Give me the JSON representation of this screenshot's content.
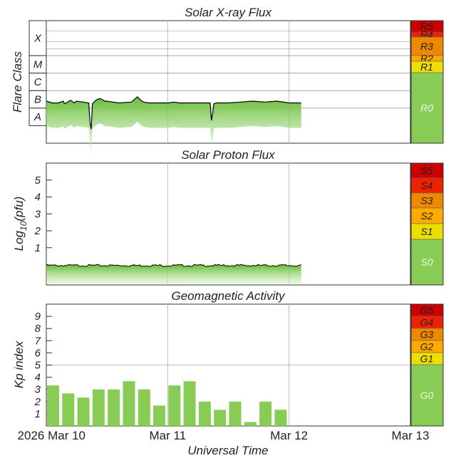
{
  "chart_data": [
    {
      "type": "line",
      "title": "Solar X-ray Flux",
      "ylabel": "Flare Class",
      "flare_classes": [
        "X",
        "M",
        "C",
        "B",
        "A"
      ],
      "scale": [
        {
          "label": "R5",
          "color": "#cc0000"
        },
        {
          "label": "R4",
          "color": "#ee2200"
        },
        {
          "label": "R3",
          "color": "#ee8800"
        },
        {
          "label": "R2",
          "color": "#ffaa00"
        },
        {
          "label": "R1",
          "color": "#eedd00"
        },
        {
          "label": "R0",
          "color": "#88cc55"
        }
      ],
      "ylim": [
        -9,
        -2
      ],
      "x_days": [
        0,
        0.25,
        0.5,
        0.75,
        1.0,
        1.25,
        1.5,
        1.75,
        2.0,
        2.1
      ],
      "series": [
        {
          "x": [
            0.0,
            0.05,
            0.1,
            0.14,
            0.15,
            0.2,
            0.23,
            0.25,
            0.3,
            0.35,
            0.36,
            0.37,
            0.38,
            0.4,
            0.42,
            0.44,
            0.46,
            0.48,
            0.5,
            0.55,
            0.6,
            0.7,
            0.75,
            0.78,
            0.8,
            0.85,
            0.9,
            1.0,
            1.05,
            1.1,
            1.2,
            1.3,
            1.35,
            1.36,
            1.37,
            1.38,
            1.4,
            1.5,
            1.6,
            1.7,
            1.8,
            1.9,
            2.0,
            2.1
          ],
          "y": [
            -6.6,
            -6.7,
            -6.7,
            -6.6,
            -6.75,
            -6.55,
            -6.7,
            -6.6,
            -6.65,
            -6.7,
            -7.8,
            -8.2,
            -6.75,
            -6.6,
            -6.5,
            -6.45,
            -6.5,
            -6.6,
            -6.6,
            -6.65,
            -6.7,
            -6.65,
            -6.35,
            -6.55,
            -6.65,
            -6.7,
            -6.7,
            -6.7,
            -6.65,
            -6.7,
            -6.7,
            -6.7,
            -6.7,
            -7.7,
            -7.3,
            -6.75,
            -6.7,
            -6.7,
            -6.65,
            -6.6,
            -6.65,
            -6.6,
            -6.7,
            -6.7
          ]
        }
      ]
    },
    {
      "type": "line",
      "title": "Solar Proton Flux",
      "ylabel": "Log10(pfu)",
      "ylabel_base": "Log",
      "ylabel_sub": "10",
      "ylabel_rest": "(pfu)",
      "y_ticks": [
        "1",
        "2",
        "3",
        "4",
        "5"
      ],
      "scale": [
        {
          "label": "S5",
          "color": "#cc0000"
        },
        {
          "label": "S4",
          "color": "#ee2200"
        },
        {
          "label": "S3",
          "color": "#ee8800"
        },
        {
          "label": "S2",
          "color": "#ffaa00"
        },
        {
          "label": "S1",
          "color": "#eedd00"
        },
        {
          "label": "S0",
          "color": "#88cc55"
        }
      ],
      "ylim": [
        -1.2,
        6
      ],
      "x_days": [
        0.0,
        0.2,
        0.4,
        0.6,
        0.8,
        1.0,
        1.2,
        1.4,
        1.6,
        1.8,
        2.0,
        2.1
      ],
      "series": [
        {
          "x": [
            0.0,
            0.2,
            0.4,
            0.6,
            0.8,
            1.0,
            1.2,
            1.4,
            1.6,
            1.8,
            2.0,
            2.1
          ],
          "y": [
            -0.05,
            -0.05,
            -0.05,
            -0.05,
            -0.05,
            -0.05,
            -0.05,
            -0.05,
            -0.05,
            -0.05,
            -0.05,
            -0.05
          ]
        }
      ]
    },
    {
      "type": "bar",
      "title": "Geomagnetic Activity",
      "ylabel": "Kp index",
      "y_ticks": [
        "1",
        "2",
        "3",
        "4",
        "5",
        "6",
        "7",
        "8",
        "9"
      ],
      "scale": [
        {
          "label": "G5",
          "color": "#cc0000"
        },
        {
          "label": "G4",
          "color": "#ee2200"
        },
        {
          "label": "G3",
          "color": "#ee8800"
        },
        {
          "label": "G2",
          "color": "#ffaa00"
        },
        {
          "label": "G1",
          "color": "#eedd00"
        },
        {
          "label": "G0",
          "color": "#88cc55"
        }
      ],
      "ylim": [
        0,
        10
      ],
      "x_days": [
        0.0,
        0.125,
        0.25,
        0.375,
        0.5,
        0.625,
        0.75,
        0.875,
        1.0,
        1.125,
        1.25,
        1.375,
        1.5,
        1.625,
        1.75,
        1.875
      ],
      "values": [
        3.33,
        2.67,
        2.33,
        3.0,
        3.0,
        3.67,
        3.0,
        1.67,
        3.33,
        3.67,
        2.0,
        1.33,
        2.0,
        0.33,
        2.0,
        1.33
      ]
    }
  ],
  "xaxis": {
    "label": "Universal Time",
    "ticks": [
      "2026 Mar 10",
      "Mar 11",
      "Mar 12",
      "Mar 13"
    ],
    "range_days": [
      0,
      3
    ]
  },
  "colors": {
    "fill_green": "#77cc44",
    "line": "#000000",
    "grid": "#bbbbbb"
  }
}
